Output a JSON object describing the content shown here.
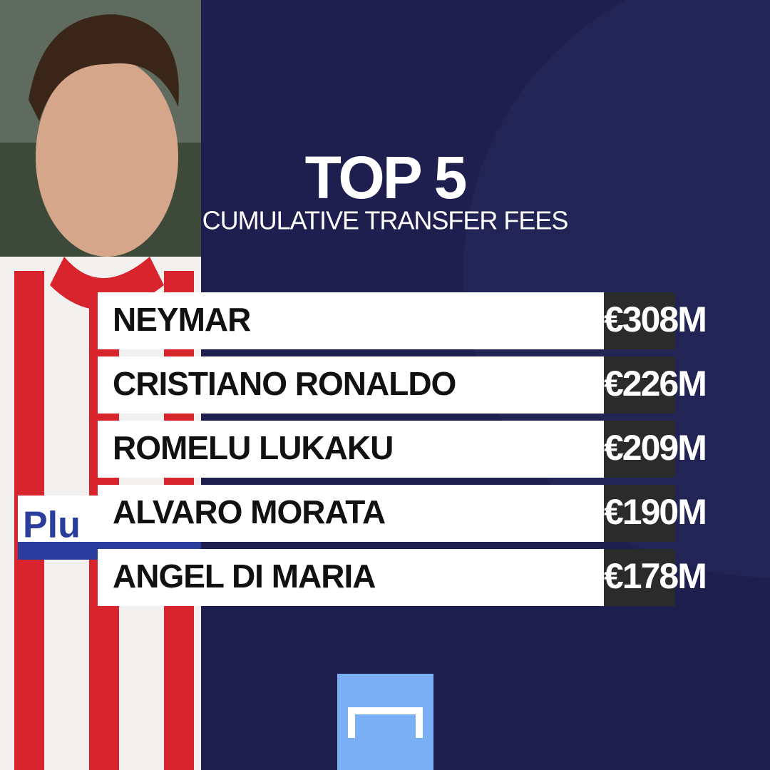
{
  "header": {
    "title": "TOP 5",
    "subtitle": "CUMULATIVE TRANSFER FEES"
  },
  "table": {
    "rows": [
      [
        "NEYMAR",
        "€308M"
      ],
      [
        "CRISTIANO RONALDO",
        "€226M"
      ],
      [
        "ROMELU LUKAKU",
        "€209M"
      ],
      [
        "ALVARO MORATA",
        "€190M"
      ],
      [
        "ANGEL DI MARIA",
        "€178M"
      ]
    ]
  }
}
